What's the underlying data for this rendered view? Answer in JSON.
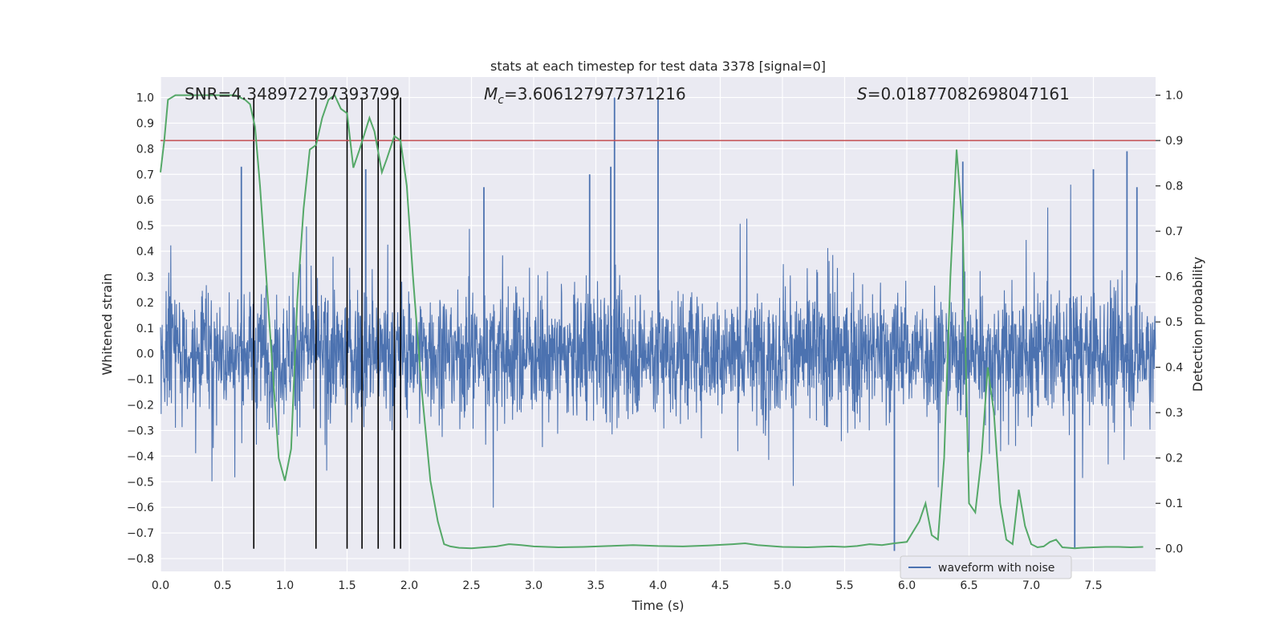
{
  "chart_data": {
    "type": "line",
    "title": "stats at each timestep for test data 3378 [signal=0]",
    "xlabel": "Time (s)",
    "ylabel": "Whitened strain",
    "ylabel_right": "Detection probability",
    "xlim": [
      0.0,
      8.0
    ],
    "ylim": [
      -0.85,
      1.08
    ],
    "ylim_right": [
      -0.05,
      1.04
    ],
    "x_ticks": [
      0.0,
      0.5,
      1.0,
      1.5,
      2.0,
      2.5,
      3.0,
      3.5,
      4.0,
      4.5,
      5.0,
      5.5,
      6.0,
      6.5,
      7.0,
      7.5
    ],
    "x_tick_labels": [
      "0.0",
      "0.5",
      "1.0",
      "1.5",
      "2.0",
      "2.5",
      "3.0",
      "3.5",
      "4.0",
      "4.5",
      "5.0",
      "5.5",
      "6.0",
      "6.5",
      "7.0",
      "7.5"
    ],
    "y_ticks": [
      -0.8,
      -0.7,
      -0.6,
      -0.5,
      -0.4,
      -0.3,
      -0.2,
      -0.1,
      0.0,
      0.1,
      0.2,
      0.3,
      0.4,
      0.5,
      0.6,
      0.7,
      0.8,
      0.9,
      1.0
    ],
    "y_tick_labels": [
      "−0.8",
      "−0.7",
      "−0.6",
      "−0.5",
      "−0.4",
      "−0.3",
      "−0.2",
      "−0.1",
      "0.0",
      "0.1",
      "0.2",
      "0.3",
      "0.4",
      "0.5",
      "0.6",
      "0.7",
      "0.8",
      "0.9",
      "1.0"
    ],
    "y_ticks_right": [
      0.0,
      0.1,
      0.2,
      0.3,
      0.4,
      0.5,
      0.6,
      0.7,
      0.8,
      0.9,
      1.0
    ],
    "y_tick_labels_right": [
      "0.0",
      "0.1",
      "0.2",
      "0.3",
      "0.4",
      "0.5",
      "0.6",
      "0.7",
      "0.8",
      "0.9",
      "1.0"
    ],
    "annotations": {
      "snr": "SNR=4.348972797393799",
      "mc_symbol": "M",
      "mc_sub": "c",
      "mc_value": "=3.606127977371216",
      "s_symbol": "S",
      "s_value": "=0.01877082698047161"
    },
    "legend": {
      "position": "lower-right",
      "entries": [
        "waveform with noise"
      ]
    },
    "threshold_right": 0.9,
    "vlines_x": [
      0.75,
      1.25,
      1.5,
      1.62,
      1.75,
      1.88,
      1.93
    ],
    "series": [
      {
        "name": "waveform with noise",
        "axis": "left",
        "color": "#4c72b0",
        "description": "noise waveform, approx range -0.75 to 1.0",
        "spikes_x": [
          0.65,
          1.65,
          2.6,
          3.45,
          3.62,
          3.65,
          4.0,
          5.9,
          6.45,
          7.35,
          7.5,
          7.77,
          7.85
        ],
        "spikes_y": [
          0.73,
          0.72,
          0.65,
          0.7,
          0.73,
          1.0,
          1.0,
          -0.77,
          0.75,
          -0.76,
          0.72,
          0.79,
          0.65
        ]
      },
      {
        "name": "detection probability",
        "axis": "right",
        "color": "#55a868",
        "x": [
          0.0,
          0.03,
          0.06,
          0.12,
          0.2,
          0.3,
          0.4,
          0.5,
          0.6,
          0.68,
          0.72,
          0.76,
          0.8,
          0.85,
          0.9,
          0.95,
          1.0,
          1.05,
          1.1,
          1.15,
          1.2,
          1.25,
          1.3,
          1.35,
          1.4,
          1.45,
          1.5,
          1.55,
          1.6,
          1.68,
          1.72,
          1.78,
          1.82,
          1.88,
          1.93,
          1.98,
          2.03,
          2.1,
          2.17,
          2.23,
          2.28,
          2.33,
          2.4,
          2.5,
          2.6,
          2.7,
          2.8,
          2.9,
          3.0,
          3.2,
          3.4,
          3.6,
          3.8,
          4.0,
          4.2,
          4.4,
          4.6,
          4.7,
          4.8,
          5.0,
          5.2,
          5.4,
          5.5,
          5.6,
          5.7,
          5.8,
          5.9,
          6.0,
          6.1,
          6.15,
          6.2,
          6.25,
          6.3,
          6.35,
          6.4,
          6.45,
          6.5,
          6.55,
          6.6,
          6.65,
          6.7,
          6.75,
          6.8,
          6.85,
          6.9,
          6.95,
          7.0,
          7.05,
          7.1,
          7.15,
          7.2,
          7.25,
          7.3,
          7.35,
          7.4,
          7.5,
          7.6,
          7.7,
          7.8,
          7.9
        ],
        "y": [
          0.83,
          0.9,
          0.99,
          1.0,
          1.0,
          1.0,
          1.0,
          1.0,
          1.0,
          0.99,
          0.98,
          0.93,
          0.8,
          0.6,
          0.4,
          0.2,
          0.15,
          0.22,
          0.55,
          0.75,
          0.88,
          0.89,
          0.95,
          0.99,
          1.0,
          0.97,
          0.96,
          0.84,
          0.88,
          0.95,
          0.92,
          0.83,
          0.86,
          0.91,
          0.9,
          0.8,
          0.6,
          0.35,
          0.15,
          0.06,
          0.01,
          0.005,
          0.002,
          0.001,
          0.003,
          0.005,
          0.01,
          0.008,
          0.005,
          0.003,
          0.004,
          0.006,
          0.008,
          0.006,
          0.005,
          0.007,
          0.01,
          0.012,
          0.008,
          0.004,
          0.003,
          0.005,
          0.004,
          0.006,
          0.01,
          0.008,
          0.012,
          0.015,
          0.06,
          0.1,
          0.03,
          0.02,
          0.2,
          0.6,
          0.88,
          0.7,
          0.1,
          0.08,
          0.2,
          0.4,
          0.3,
          0.1,
          0.02,
          0.01,
          0.13,
          0.05,
          0.01,
          0.003,
          0.005,
          0.015,
          0.02,
          0.003,
          0.002,
          0.001,
          0.002,
          0.003,
          0.004,
          0.004,
          0.003,
          0.004
        ]
      }
    ]
  }
}
